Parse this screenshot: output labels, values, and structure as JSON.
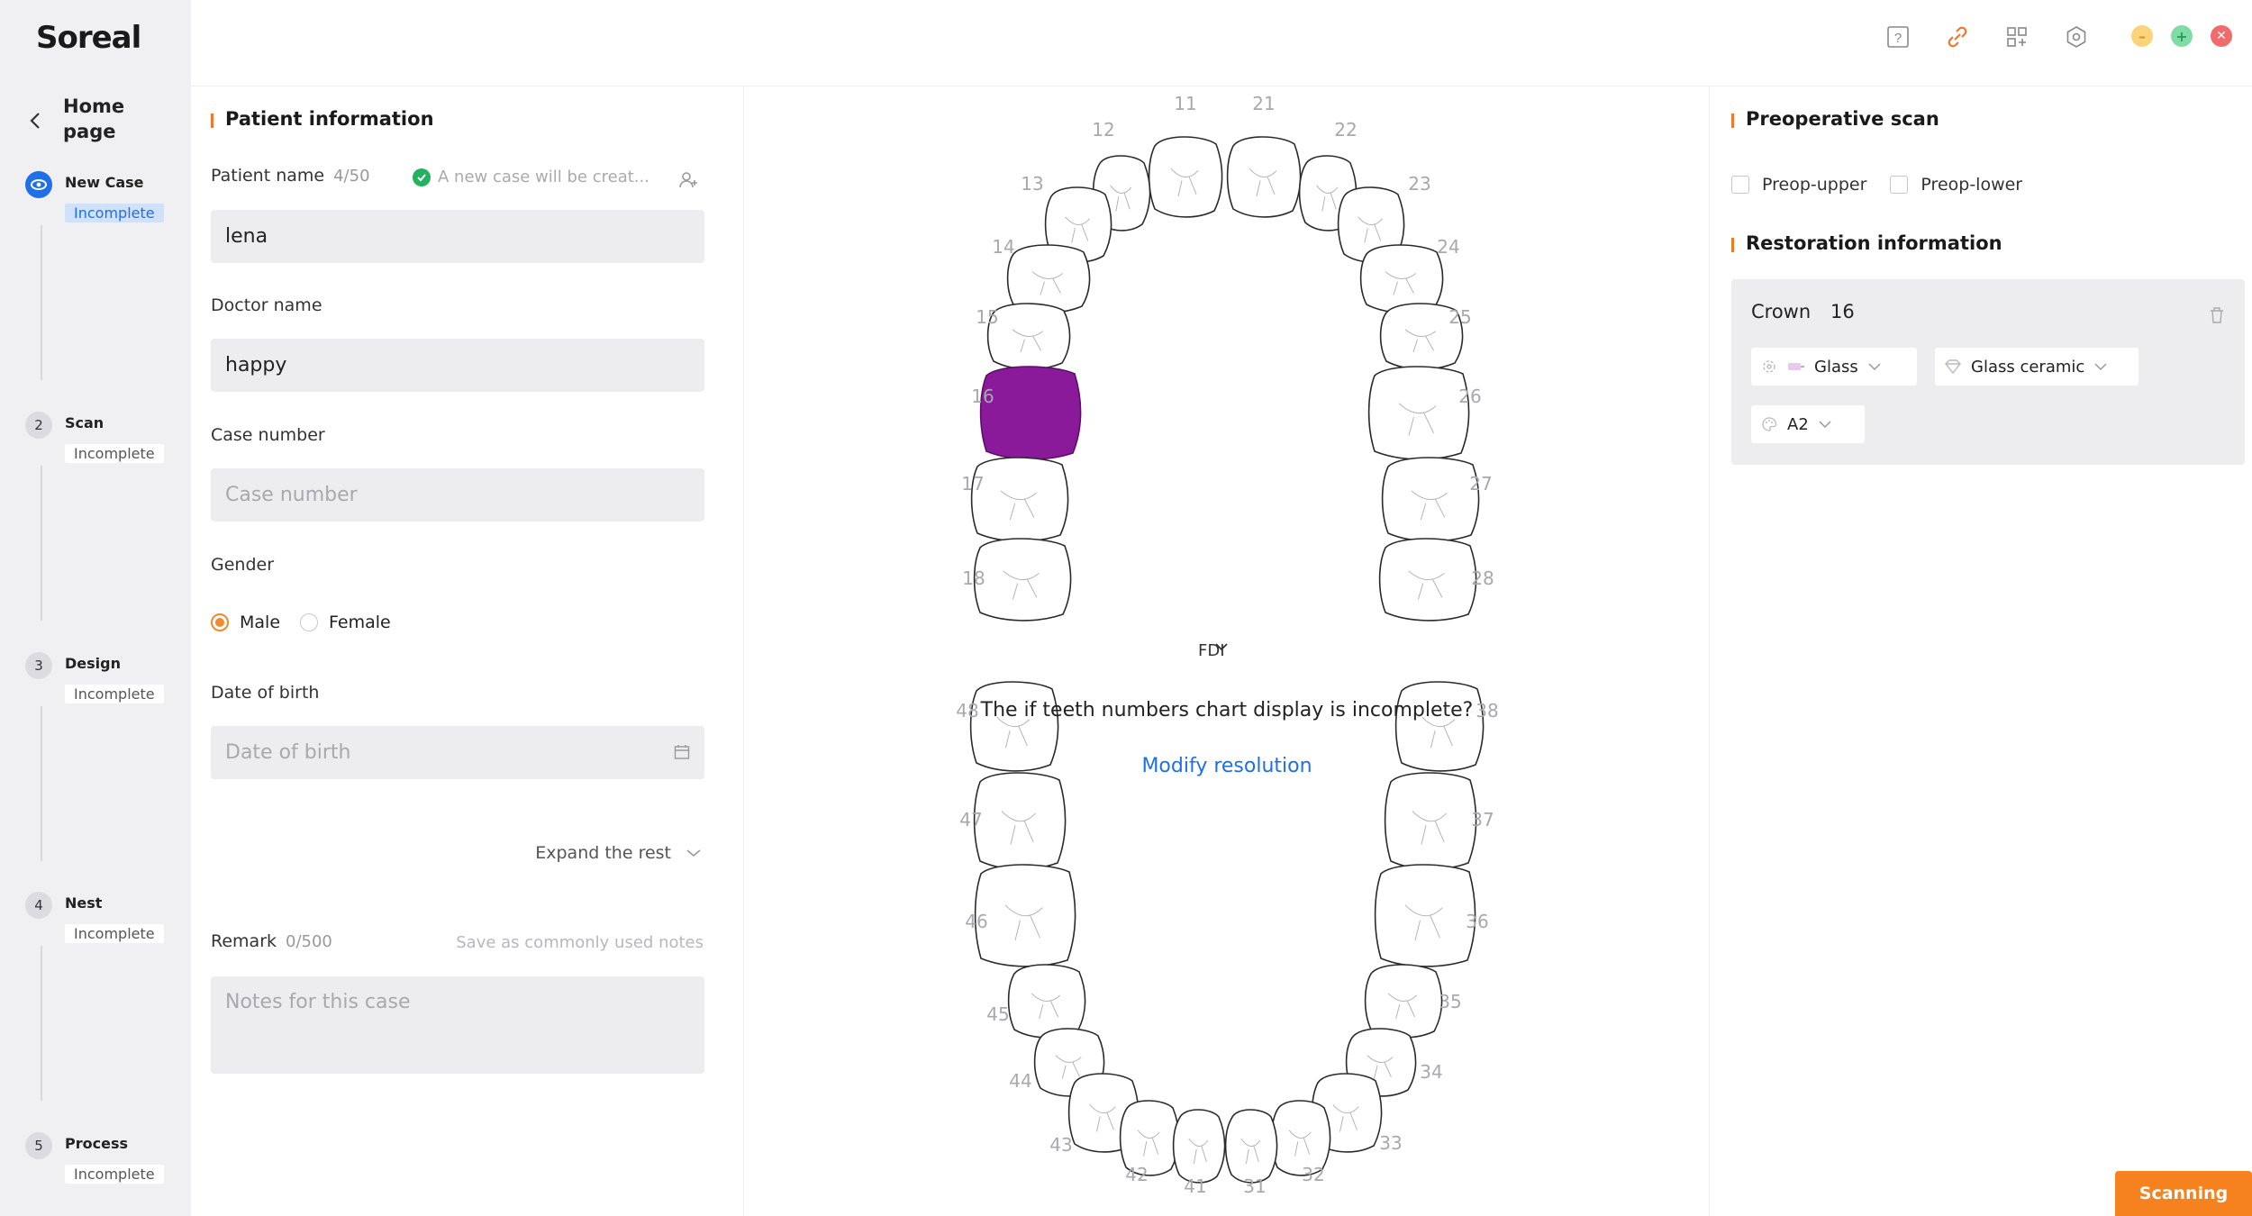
{
  "app": {
    "logo": "Soreal"
  },
  "sidebar": {
    "home_label": "Home page",
    "steps": [
      {
        "num": "",
        "title": "New Case",
        "status": "Incomplete"
      },
      {
        "num": "2",
        "title": "Scan",
        "status": "Incomplete"
      },
      {
        "num": "3",
        "title": "Design",
        "status": "Incomplete"
      },
      {
        "num": "4",
        "title": "Nest",
        "status": "Incomplete"
      },
      {
        "num": "5",
        "title": "Process",
        "status": "Incomplete"
      }
    ]
  },
  "topbar": {
    "icons": [
      "help-icon",
      "link-icon",
      "apps-icon",
      "settings-icon"
    ],
    "window_buttons": {
      "minimize": "#fbd47a",
      "maximize": "#7fdca6",
      "close": "#f06b6b"
    }
  },
  "patient": {
    "section_title": "Patient information",
    "name_label": "Patient name",
    "name_count": "4/50",
    "name_hint": "A new case will be creat...",
    "name_value": "lena",
    "doctor_label": "Doctor name",
    "doctor_value": "happy",
    "case_label": "Case number",
    "case_placeholder": "Case number",
    "gender_label": "Gender",
    "gender_male": "Male",
    "gender_female": "Female",
    "gender_selected": "Male",
    "dob_label": "Date of birth",
    "dob_placeholder": "Date of birth",
    "expand_label": "Expand the rest",
    "remark_label": "Remark",
    "remark_count": "0/500",
    "save_note": "Save as commonly used notes",
    "remark_placeholder": "Notes for this case"
  },
  "chart": {
    "notation": "FDI",
    "message": "The if teeth numbers chart display is incomplete?",
    "modify_link": "Modify resolution",
    "selected_tooth": "16",
    "highlight_color": "#8a1a9a"
  },
  "right": {
    "preop_title": "Preoperative scan",
    "preop_upper": "Preop-upper",
    "preop_lower": "Preop-lower",
    "resto_title": "Restoration information",
    "resto_type": "Crown",
    "resto_tooth": "16",
    "material_1": "Glass",
    "material_2": "Glass ceramic",
    "shade": "A2"
  },
  "actions": {
    "scan_button": "Scanning"
  }
}
